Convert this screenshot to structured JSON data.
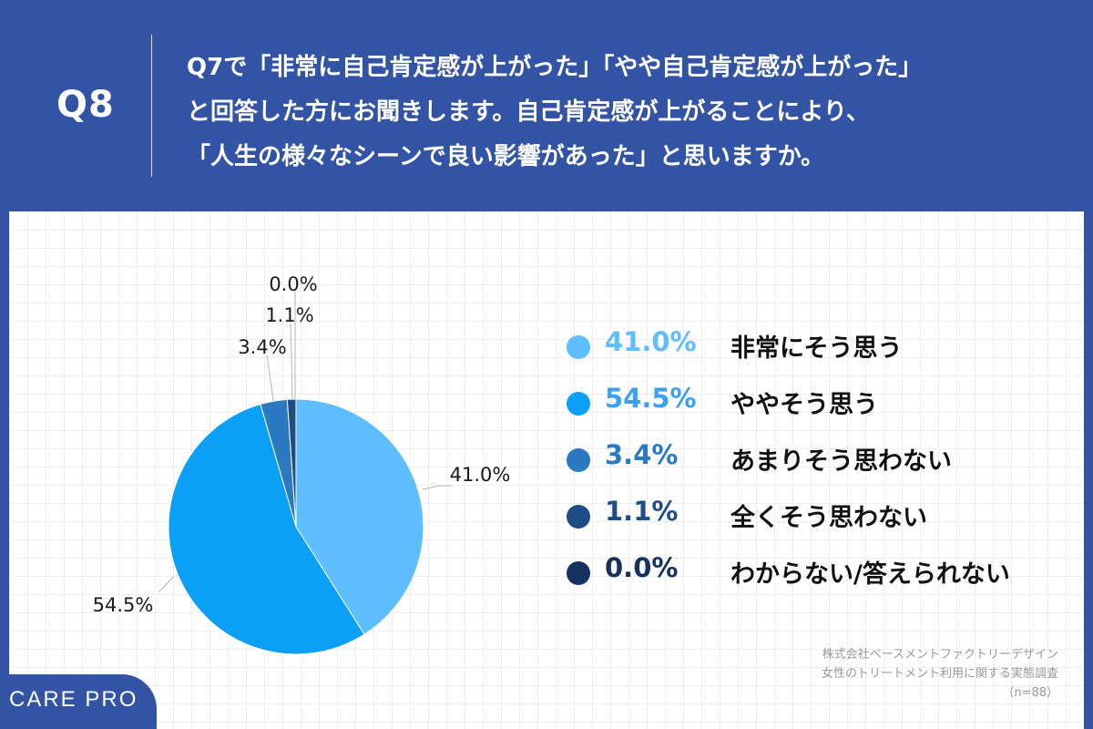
{
  "header": {
    "q_label": "Q8",
    "question_lines": [
      "Q7で「非常に自己肯定感が上がった」「やや自己肯定感が上がった」",
      "と回答した方にお聞きします。自己肯定感が上がることにより、",
      "「人生の様々なシーンで良い影響があった」と思いますか。"
    ]
  },
  "chart_data": {
    "type": "pie",
    "slices": [
      {
        "label": "非常にそう思う",
        "value": 41.0,
        "display": "41.0%",
        "color": "#5ebeff"
      },
      {
        "label": "ややそう思う",
        "value": 54.5,
        "display": "54.5%",
        "color": "#0aa0f7"
      },
      {
        "label": "あまりそう思わない",
        "value": 3.4,
        "display": "3.4%",
        "color": "#2b79c1"
      },
      {
        "label": "全くそう思わない",
        "value": 1.1,
        "display": "1.1%",
        "color": "#1f4d86"
      },
      {
        "label": "わからない/答えられない",
        "value": 0.0,
        "display": "0.0%",
        "color": "#163261"
      }
    ],
    "legend_pct_colors": [
      "#5ebeff",
      "#3aa2f0",
      "#2b79c1",
      "#1f4d86",
      "#163261"
    ],
    "legend_placement": "right"
  },
  "source": {
    "line1": "株式会社ベースメントファクトリーデザイン",
    "line2": "女性のトリートメント利用に関する実態調査",
    "line3": "（n=88）"
  },
  "brand": {
    "name": "CARE PRO"
  }
}
